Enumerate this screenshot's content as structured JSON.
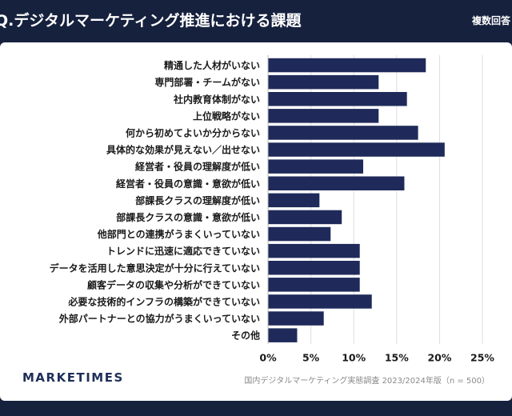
{
  "header": {
    "title": "Q.デジタルマーケティング推進における課題",
    "badge": "複数回答"
  },
  "footer": {
    "brand": "MARKETIMES",
    "source": "国内デジタルマーケティング実態調査 2023/2024年版（n = 500）"
  },
  "colors": {
    "bar": "#1f2a5a",
    "header_bg": "#16213e",
    "grid": "#dddddd"
  },
  "chart_data": {
    "type": "bar",
    "orientation": "horizontal",
    "categories": [
      "精通した人材がいない",
      "専門部署・チームがない",
      "社内教育体制がない",
      "上位戦略がない",
      "何から初めてよいか分からない",
      "具体的な効果が見えない／出せない",
      "経営者・役員の理解度が低い",
      "経営者・役員の意識・意欲が低い",
      "部課長クラスの理解度が低い",
      "部課長クラスの意識・意欲が低い",
      "他部門との連携がうまくいっていない",
      "トレンドに迅速に適応できていない",
      "データを活用した意思決定が十分に行えていない",
      "顧客データの収集や分析ができていない",
      "必要な技術的インフラの構築ができていない",
      "外部パートナーとの協力がうまくいっていない",
      "その他"
    ],
    "values": [
      18.4,
      12.9,
      16.2,
      12.9,
      17.5,
      20.6,
      11.1,
      15.9,
      6.0,
      8.6,
      7.3,
      10.7,
      10.7,
      10.7,
      12.1,
      6.5,
      3.4
    ],
    "xlim": [
      0,
      25
    ],
    "xticks": [
      "0%",
      "5%",
      "10%",
      "15%",
      "20%",
      "25%"
    ],
    "grid": true
  }
}
